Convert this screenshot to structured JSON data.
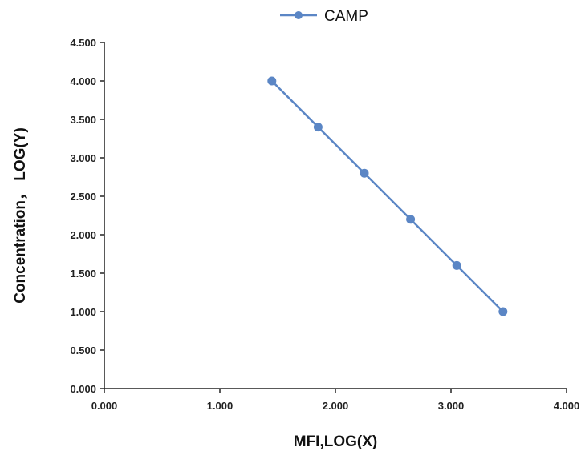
{
  "chart_data": {
    "type": "line",
    "title": "",
    "xlabel": "MFI,LOG(X)",
    "ylabel": "Concentration， LOG(Y)",
    "xlim": [
      0,
      4
    ],
    "ylim": [
      0,
      4.5
    ],
    "x_ticks": [
      "0.000",
      "1.000",
      "2.000",
      "3.000",
      "4.000"
    ],
    "y_ticks": [
      "0.000",
      "0.500",
      "1.000",
      "1.500",
      "2.000",
      "2.500",
      "3.000",
      "3.500",
      "4.000",
      "4.500"
    ],
    "grid": false,
    "legend_position": "top-center",
    "series": [
      {
        "name": "CAMP",
        "color": "#5b86c5",
        "marker": "circle",
        "x": [
          1.45,
          1.85,
          2.25,
          2.65,
          3.05,
          3.45
        ],
        "y": [
          4.0,
          3.4,
          2.8,
          2.2,
          1.6,
          1.0
        ]
      }
    ]
  }
}
